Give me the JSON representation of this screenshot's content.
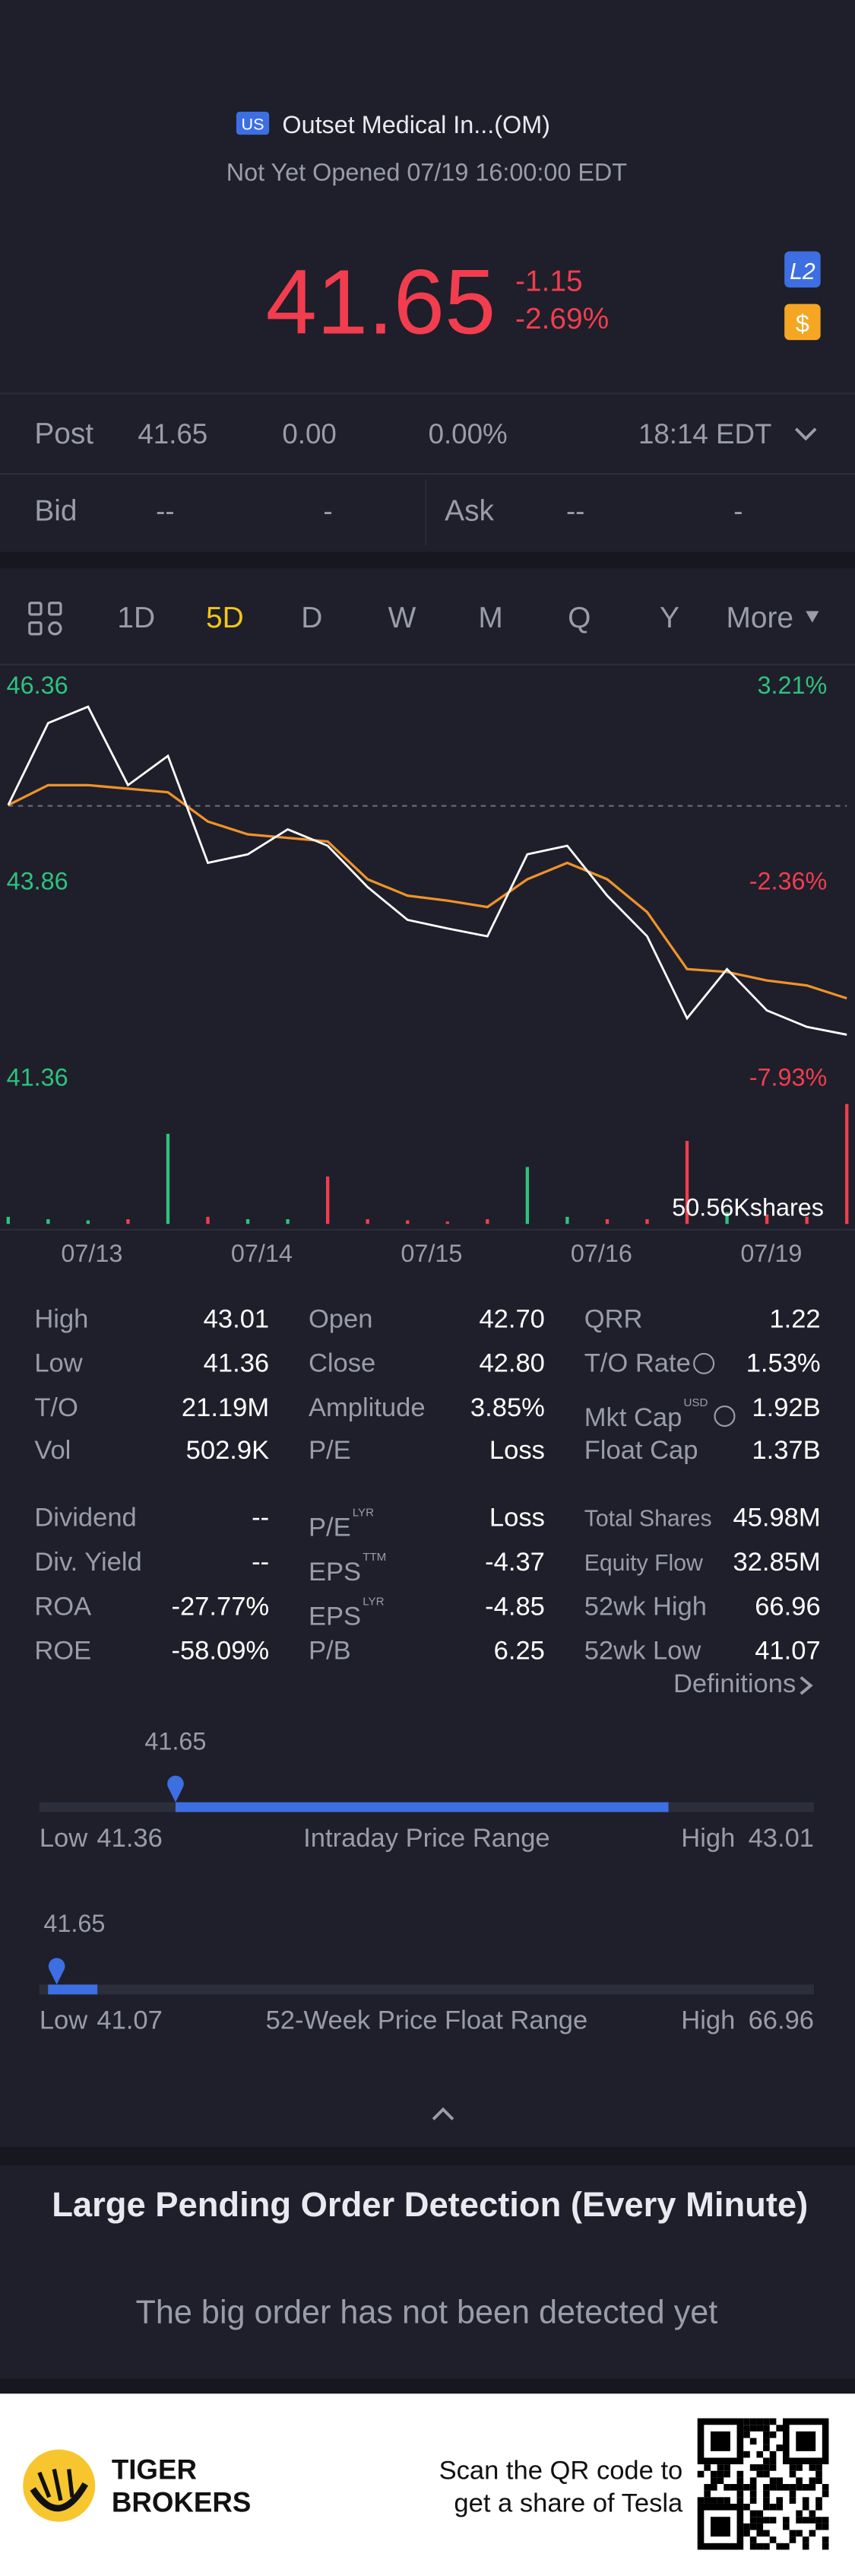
{
  "header": {
    "market": "US",
    "name": "Outset Medical In...(OM)",
    "status": "Not Yet Opened 07/19 16:00:00 EDT",
    "price": "41.65",
    "change": "-1.15",
    "change_pct": "-2.69%",
    "level_badge": "L2",
    "currency_badge": "$"
  },
  "post": {
    "label": "Post",
    "price": "41.65",
    "change": "0.00",
    "change_pct": "0.00%",
    "time": "18:14 EDT"
  },
  "quote": {
    "bid_label": "Bid",
    "bid": "--",
    "bid_size": "-",
    "ask_label": "Ask",
    "ask": "--",
    "ask_size": "-"
  },
  "tabs": {
    "items": [
      "1D",
      "5D",
      "D",
      "W",
      "M",
      "Q",
      "Y",
      "More"
    ],
    "active": 1
  },
  "chart_data": {
    "type": "line",
    "xtick_labels": [
      "07/13",
      "07/14",
      "07/15",
      "07/16",
      "07/19"
    ],
    "ylim": [
      41.36,
      46.36
    ],
    "yticks": [
      46.36,
      43.86,
      41.36
    ],
    "y2lim": [
      -7.93,
      3.21
    ],
    "y2ticks": [
      {
        "value": 3.21,
        "label": "3.21%"
      },
      {
        "value": -2.36,
        "label": "-2.36%"
      },
      {
        "value": -7.93,
        "label": "-7.93%"
      }
    ],
    "series": [
      {
        "color": "#ffffff",
        "values": [
          44.93,
          46.08,
          46.31,
          45.21,
          45.62,
          44.12,
          44.24,
          44.59,
          44.36,
          43.78,
          43.32,
          43.2,
          43.09,
          44.24,
          44.36,
          43.66,
          43.09,
          41.94,
          42.63,
          42.05,
          41.82,
          41.71
        ]
      },
      {
        "color": "#f0922b",
        "values": [
          44.93,
          45.21,
          45.21,
          45.16,
          45.11,
          44.7,
          44.52,
          44.47,
          44.42,
          43.89,
          43.66,
          43.59,
          43.5,
          43.89,
          44.12,
          43.89,
          43.43,
          42.63,
          42.59,
          42.47,
          42.4,
          42.22
        ]
      }
    ],
    "volume": {
      "values": [
        3,
        2,
        1.5,
        2,
        38,
        3,
        2,
        2,
        20,
        2,
        1.5,
        1,
        2,
        24,
        3,
        2,
        2,
        35,
        5,
        4,
        3,
        50.56
      ],
      "tick": {
        "value": 50.56,
        "label": "50.56Kshares"
      },
      "up_color": "#2ec27e",
      "down_color": "#f23d4f"
    }
  },
  "stats": {
    "columns": [
      [
        [
          "High",
          "43.01"
        ],
        [
          "Low",
          "41.36"
        ],
        [
          "T/O",
          "21.19M"
        ],
        [
          "Vol",
          "502.9K"
        ],
        [
          "Dividend",
          "--"
        ],
        [
          "Div. Yield",
          "--"
        ],
        [
          "ROA",
          "-27.77%"
        ],
        [
          "ROE",
          "-58.09%"
        ]
      ],
      [
        [
          "Open",
          "42.70"
        ],
        [
          "Close",
          "42.80"
        ],
        [
          "Amplitude",
          "3.85%"
        ],
        [
          "P/E",
          "Loss"
        ],
        [
          "P/E",
          "Loss",
          "LYR"
        ],
        [
          "EPS",
          "-4.37",
          "TTM"
        ],
        [
          "EPS",
          "-4.85",
          "LYR"
        ],
        [
          "P/B",
          "6.25"
        ]
      ],
      [
        [
          "QRR",
          "1.22"
        ],
        [
          "T/O Rate",
          "1.53%"
        ],
        [
          "Mkt Cap",
          "1.92B",
          "USD"
        ],
        [
          "Float Cap",
          "1.37B"
        ],
        [
          "Total Shares",
          "45.98M"
        ],
        [
          "Equity Flow",
          "32.85M"
        ],
        [
          "52wk High",
          "66.96"
        ],
        [
          "52wk Low",
          "41.07"
        ]
      ]
    ],
    "definitions": "Definitions"
  },
  "ranges": [
    {
      "current": 41.65,
      "low_label": "Low",
      "low": 41.36,
      "title": "Intraday Price Range",
      "high_label": "High",
      "high": 43.01
    },
    {
      "current": 41.65,
      "low_label": "Low",
      "low": 41.07,
      "title": "52-Week Price Float Range",
      "high_label": "High",
      "high": 66.96
    }
  ],
  "pending": {
    "title": "Large Pending Order Detection (Every Minute)",
    "message": "The big order has not been detected yet"
  },
  "footer": {
    "brand_line1": "TIGER",
    "brand_line2": "BROKERS",
    "promo_line1": "Scan the QR code to",
    "promo_line2": "get a share of Tesla"
  }
}
